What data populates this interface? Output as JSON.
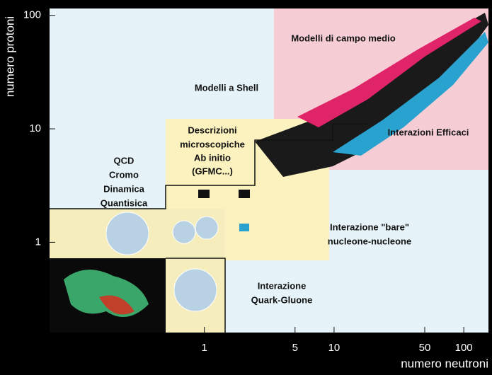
{
  "chart_data": {
    "type": "region-map",
    "x_label": "numero neutroni",
    "y_label": "numero protoni",
    "log_x": true,
    "log_y": true,
    "xlim": [
      0.064,
      155
    ],
    "ylim": [
      0.16,
      115
    ],
    "xticks": [
      1,
      5,
      10,
      50,
      100
    ],
    "yticks": [
      1,
      10,
      100
    ],
    "annotations": [
      "Modelli di campo medio",
      "Modelli a Shell",
      "Interazioni Efficaci",
      "Descrizioni",
      "microscopiche",
      "Ab initio",
      "(GFMC...)",
      "QCD",
      "Cromo",
      "Dinamica",
      "Quantisica",
      "Interazione \"bare\"",
      "nucleone-nucleone",
      "Interazione",
      "Quark-Gluone"
    ]
  }
}
